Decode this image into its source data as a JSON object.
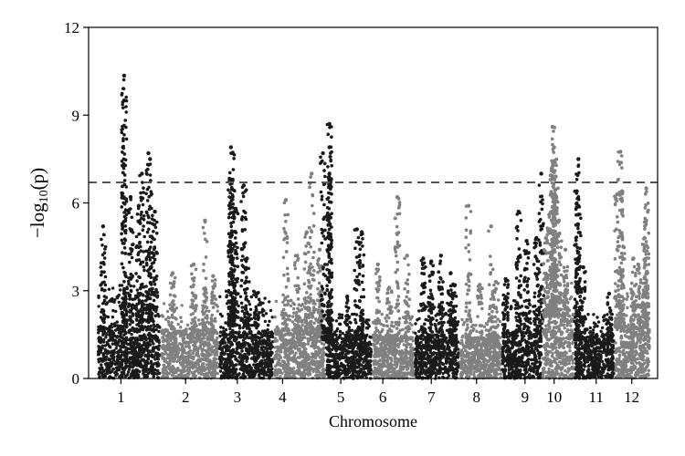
{
  "chart_data": {
    "type": "scatter",
    "title": "",
    "xlabel": "Chromosome",
    "ylabel": {
      "prefix": "−log",
      "subscript": "10",
      "suffix": "(p)"
    },
    "ylim": [
      0,
      12
    ],
    "yticks": [
      0,
      3,
      6,
      9,
      12
    ],
    "grid": false,
    "legend": "none",
    "threshold": 6.7,
    "colors": {
      "odd": "#1a1a1a",
      "even": "#808080",
      "threshold": "#555555"
    },
    "chromosomes": [
      {
        "label": "1",
        "tick": 1,
        "start": 0.3,
        "end": 2.2,
        "baseline_max": 1.8,
        "bulk_max": 3.2,
        "peaks": [
          [
            1.1,
            10.35
          ],
          [
            1.1,
            9.5
          ],
          [
            1.85,
            7.7
          ],
          [
            1.9,
            7.5
          ],
          [
            1.65,
            7.0
          ],
          [
            1.55,
            5.9
          ],
          [
            0.45,
            5.2
          ],
          [
            1.3,
            6.2
          ],
          [
            2.05,
            5.7
          ]
        ]
      },
      {
        "label": "2",
        "tick": 3,
        "start": 2.25,
        "end": 4.0,
        "baseline_max": 1.7,
        "bulk_max": 2.6,
        "peaks": [
          [
            3.6,
            5.4
          ],
          [
            3.25,
            3.9
          ],
          [
            2.6,
            3.6
          ],
          [
            3.85,
            3.5
          ]
        ]
      },
      {
        "label": "3",
        "tick": 4.6,
        "start": 4.05,
        "end": 5.7,
        "baseline_max": 1.6,
        "bulk_max": 3.0,
        "peaks": [
          [
            4.4,
            7.9
          ],
          [
            4.45,
            7.7
          ],
          [
            4.4,
            6.8
          ],
          [
            4.8,
            6.6
          ],
          [
            4.55,
            5.8
          ],
          [
            4.9,
            4.1
          ],
          [
            5.2,
            2.9
          ]
        ]
      },
      {
        "label": "4",
        "tick": 6,
        "start": 5.75,
        "end": 7.3,
        "baseline_max": 1.7,
        "bulk_max": 2.8,
        "peaks": [
          [
            6.9,
            7.0
          ],
          [
            6.1,
            6.1
          ],
          [
            6.75,
            5.0
          ],
          [
            7.15,
            4.4
          ],
          [
            6.45,
            4.2
          ]
        ]
      },
      {
        "label": "5",
        "tick": 7.8,
        "start": 7.35,
        "end": 8.75,
        "baseline_max": 1.5,
        "bulk_max": 2.2,
        "peaks": [
          [
            7.45,
            8.7
          ],
          [
            7.45,
            7.9
          ],
          [
            7.25,
            7.7
          ],
          [
            7.45,
            7.0
          ],
          [
            8.3,
            5.1
          ],
          [
            8.45,
            5.0
          ],
          [
            8.0,
            2.8
          ]
        ]
      },
      {
        "label": "6",
        "tick": 9.1,
        "start": 8.8,
        "end": 10.05,
        "baseline_max": 1.5,
        "bulk_max": 2.3,
        "peaks": [
          [
            9.55,
            6.2
          ],
          [
            9.3,
            3.1
          ],
          [
            9.85,
            4.2
          ],
          [
            8.95,
            3.9
          ]
        ]
      },
      {
        "label": "7",
        "tick": 10.6,
        "start": 10.1,
        "end": 11.45,
        "baseline_max": 1.5,
        "bulk_max": 2.6,
        "peaks": [
          [
            10.35,
            4.1
          ],
          [
            10.6,
            4.0
          ],
          [
            10.9,
            4.2
          ],
          [
            11.2,
            3.6
          ],
          [
            11.3,
            3.2
          ]
        ]
      },
      {
        "label": "8",
        "tick": 12,
        "start": 11.5,
        "end": 12.75,
        "baseline_max": 1.4,
        "bulk_max": 2.1,
        "peaks": [
          [
            11.75,
            5.9
          ],
          [
            12.45,
            5.2
          ],
          [
            12.1,
            3.2
          ],
          [
            12.6,
            3.3
          ]
        ]
      },
      {
        "label": "9",
        "tick": 13.5,
        "start": 12.8,
        "end": 14.0,
        "baseline_max": 1.6,
        "bulk_max": 2.7,
        "peaks": [
          [
            13.3,
            5.7
          ],
          [
            13.55,
            4.7
          ],
          [
            13.85,
            4.8
          ],
          [
            14.0,
            7.0
          ],
          [
            12.9,
            3.4
          ]
        ]
      },
      {
        "label": "10",
        "tick": 14.4,
        "start": 14.05,
        "end": 15.0,
        "baseline_max": 2.2,
        "bulk_max": 3.6,
        "peaks": [
          [
            14.35,
            8.6
          ],
          [
            14.4,
            7.9
          ],
          [
            14.4,
            7.4
          ],
          [
            14.45,
            6.9
          ],
          [
            14.35,
            6.2
          ],
          [
            14.55,
            5.4
          ],
          [
            14.25,
            5.6
          ],
          [
            14.15,
            4.8
          ],
          [
            14.75,
            4.4
          ]
        ]
      },
      {
        "label": "11",
        "tick": 15.7,
        "start": 15.05,
        "end": 16.25,
        "baseline_max": 1.5,
        "bulk_max": 2.2,
        "peaks": [
          [
            15.15,
            7.5
          ],
          [
            15.1,
            6.4
          ],
          [
            15.15,
            5.6
          ],
          [
            15.3,
            3.8
          ],
          [
            16.1,
            2.9
          ]
        ]
      },
      {
        "label": "12",
        "tick": 16.8,
        "start": 16.3,
        "end": 17.35,
        "baseline_max": 1.8,
        "bulk_max": 2.9,
        "peaks": [
          [
            16.45,
            7.75
          ],
          [
            16.5,
            6.4
          ],
          [
            16.35,
            6.3
          ],
          [
            17.25,
            6.5
          ],
          [
            17.25,
            5.4
          ],
          [
            17.2,
            4.8
          ],
          [
            16.85,
            4.1
          ],
          [
            17.0,
            3.9
          ]
        ]
      }
    ]
  }
}
